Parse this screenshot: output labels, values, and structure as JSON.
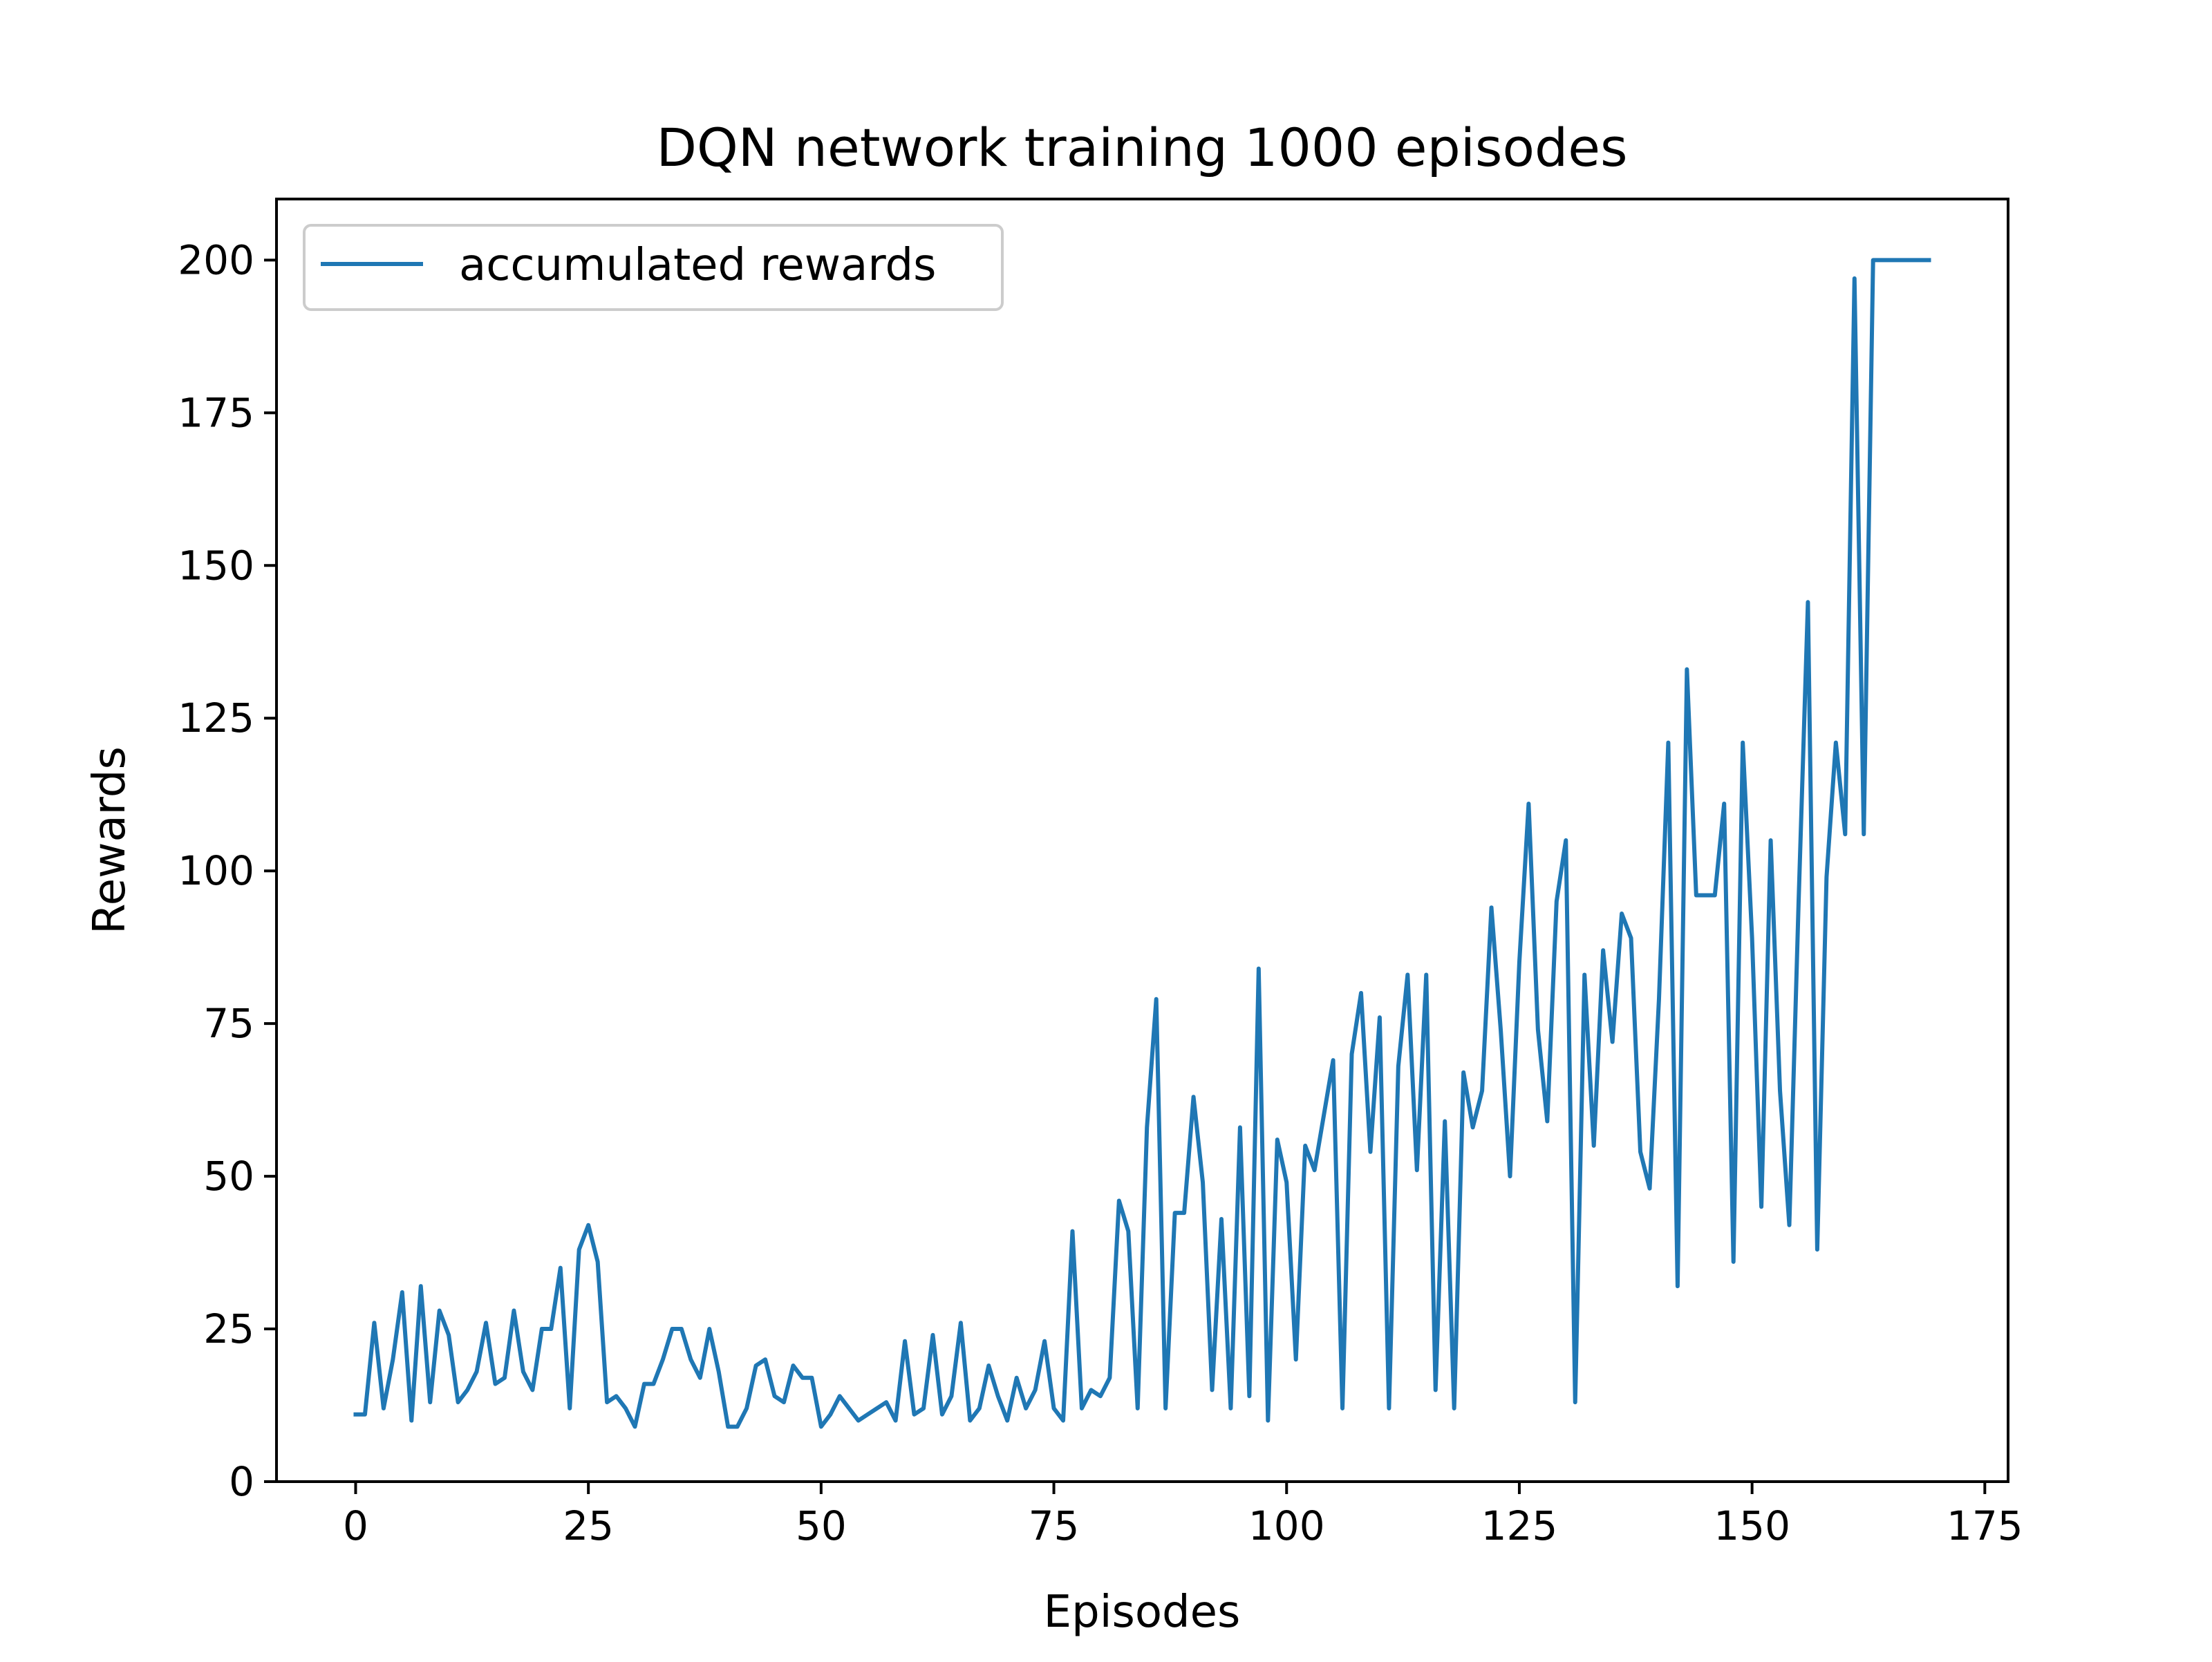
{
  "chart_data": {
    "type": "line",
    "title": "DQN network training 1000 episodes",
    "xlabel": "Episodes",
    "ylabel": "Rewards",
    "xlim": [
      -8.5,
      177.5
    ],
    "ylim": [
      0,
      210
    ],
    "xticks": [
      0,
      25,
      50,
      75,
      100,
      125,
      150,
      175
    ],
    "yticks": [
      0,
      25,
      50,
      75,
      100,
      125,
      150,
      175,
      200
    ],
    "grid": false,
    "legend": {
      "position": "top-left"
    },
    "series": [
      {
        "name": "accumulated rewards",
        "color": "#1f77b4",
        "x": [
          0,
          1,
          2,
          3,
          4,
          5,
          6,
          7,
          8,
          9,
          10,
          11,
          12,
          13,
          14,
          15,
          16,
          17,
          18,
          19,
          20,
          21,
          22,
          23,
          24,
          25,
          26,
          27,
          28,
          29,
          30,
          31,
          32,
          33,
          34,
          35,
          36,
          37,
          38,
          39,
          40,
          41,
          42,
          43,
          44,
          45,
          46,
          47,
          48,
          49,
          50,
          51,
          52,
          53,
          54,
          55,
          56,
          57,
          58,
          59,
          60,
          61,
          62,
          63,
          64,
          65,
          66,
          67,
          68,
          69,
          70,
          71,
          72,
          73,
          74,
          75,
          76,
          77,
          78,
          79,
          80,
          81,
          82,
          83,
          84,
          85,
          86,
          87,
          88,
          89,
          90,
          91,
          92,
          93,
          94,
          95,
          96,
          97,
          98,
          99,
          100,
          101,
          102,
          103,
          104,
          105,
          106,
          107,
          108,
          109,
          110,
          111,
          112,
          113,
          114,
          115,
          116,
          117,
          118,
          119,
          120,
          121,
          122,
          123,
          124,
          125,
          126,
          127,
          128,
          129,
          130,
          131,
          132,
          133,
          134,
          135,
          136,
          137,
          138,
          139,
          140,
          141,
          142,
          143,
          144,
          145,
          146,
          147,
          148,
          149,
          150,
          151,
          152,
          153,
          154,
          155,
          156,
          157,
          158,
          159,
          160,
          161,
          162,
          163,
          164,
          165,
          166,
          167,
          168,
          169
        ],
        "values": [
          11,
          11,
          26,
          12,
          20,
          31,
          10,
          32,
          13,
          28,
          24,
          13,
          15,
          18,
          26,
          16,
          17,
          28,
          18,
          15,
          25,
          25,
          35,
          12,
          38,
          42,
          36,
          13,
          14,
          12,
          9,
          16,
          16,
          20,
          25,
          25,
          20,
          17,
          25,
          18,
          9,
          9,
          12,
          19,
          20,
          14,
          13,
          19,
          17,
          17,
          9,
          11,
          14,
          12,
          10,
          11,
          12,
          13,
          10,
          23,
          11,
          12,
          24,
          11,
          14,
          26,
          10,
          12,
          19,
          14,
          10,
          17,
          12,
          15,
          23,
          12,
          10,
          41,
          12,
          15,
          14,
          17,
          46,
          41,
          12,
          58,
          79,
          12,
          44,
          44,
          63,
          49,
          15,
          43,
          12,
          58,
          14,
          84,
          10,
          56,
          49,
          20,
          55,
          51,
          60,
          69,
          12,
          70,
          80,
          54,
          76,
          12,
          68,
          83,
          51,
          83,
          15,
          59,
          12,
          67,
          58,
          64,
          94,
          74,
          50,
          85,
          111,
          74,
          59,
          95,
          105,
          13,
          83,
          55,
          87,
          72,
          93,
          89,
          54,
          48,
          79,
          121,
          32,
          133,
          96,
          96,
          96,
          111,
          36,
          121,
          89,
          45,
          105,
          64,
          42,
          95,
          144,
          38,
          99,
          121,
          106,
          197,
          106,
          200,
          200,
          200,
          200,
          200,
          200,
          200
        ]
      }
    ]
  }
}
